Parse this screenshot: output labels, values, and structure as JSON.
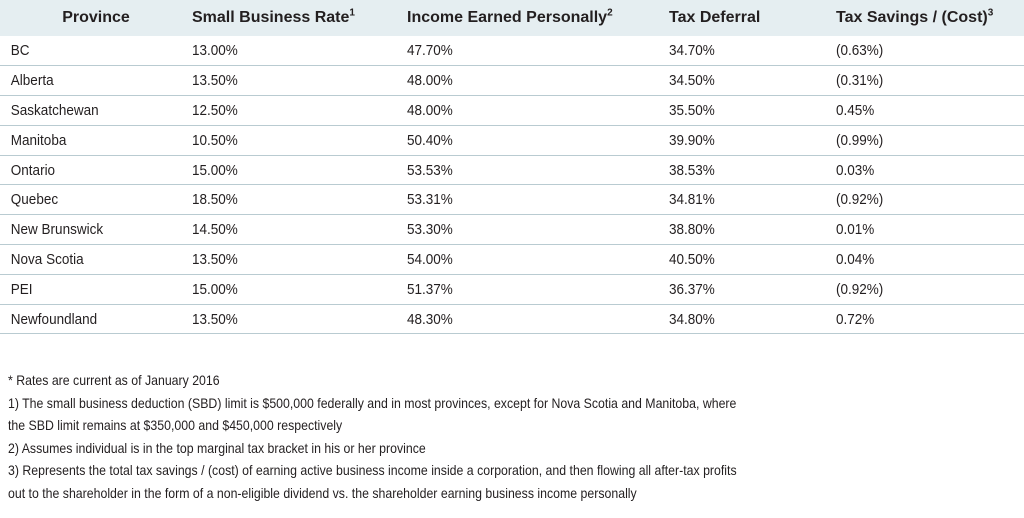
{
  "table": {
    "headers": [
      {
        "label": "Province",
        "sup": ""
      },
      {
        "label": "Small Business Rate",
        "sup": "1"
      },
      {
        "label": "Income Earned Personally",
        "sup": "2"
      },
      {
        "label": "Tax Deferral",
        "sup": ""
      },
      {
        "label": "Tax Savings / (Cost)",
        "sup": "3"
      }
    ],
    "rows": [
      [
        "BC",
        "13.00%",
        "47.70%",
        "34.70%",
        "(0.63%)"
      ],
      [
        "Alberta",
        "13.50%",
        "48.00%",
        "34.50%",
        "(0.31%)"
      ],
      [
        "Saskatchewan",
        "12.50%",
        "48.00%",
        "35.50%",
        "0.45%"
      ],
      [
        "Manitoba",
        "10.50%",
        "50.40%",
        "39.90%",
        "(0.99%)"
      ],
      [
        "Ontario",
        "15.00%",
        "53.53%",
        "38.53%",
        "0.03%"
      ],
      [
        "Quebec",
        "18.50%",
        "53.31%",
        "34.81%",
        "(0.92%)"
      ],
      [
        "New Brunswick",
        "14.50%",
        "53.30%",
        "38.80%",
        "0.01%"
      ],
      [
        "Nova Scotia",
        "13.50%",
        "54.00%",
        "40.50%",
        "0.04%"
      ],
      [
        "PEI",
        "15.00%",
        "51.37%",
        "36.37%",
        "(0.92%)"
      ],
      [
        "Newfoundland",
        "13.50%",
        "48.30%",
        "34.80%",
        "0.72%"
      ]
    ]
  },
  "notes": [
    "* Rates are current as of January 2016",
    "1) The small business deduction (SBD) limit is $500,000 federally and in most provinces, except for Nova Scotia and Manitoba, where",
    "the SBD limit remains at $350,000 and $450,000 respectively",
    "2) Assumes individual is in the top marginal tax bracket in his or her province",
    "3) Represents the total tax savings / (cost) of earning active business income inside a corporation, and then flowing all after-tax profits",
    "out to the shareholder in the form of a non-eligible dividend vs. the shareholder earning business income personally"
  ],
  "colors": {
    "header_bg": "#e5eef1",
    "row_border": "#b9cbd1",
    "text": "#231f20"
  }
}
